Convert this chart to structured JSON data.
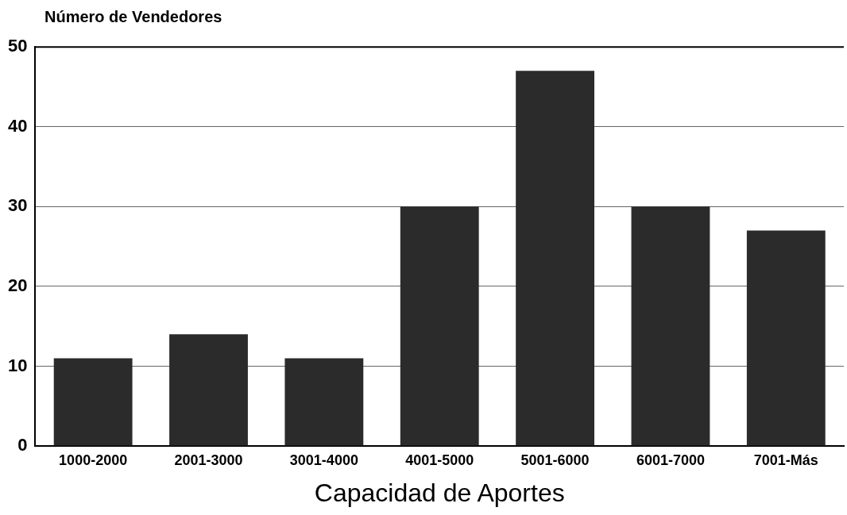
{
  "chart_data": {
    "type": "bar",
    "xlabel": "Capacidad de Aportes",
    "ylabel": "Número de Vendedores",
    "categories": [
      "1000-2000",
      "2001-3000",
      "3001-4000",
      "4001-5000",
      "5001-6000",
      "6001-7000",
      "7001-Más"
    ],
    "values": [
      11,
      14,
      11,
      30,
      47,
      30,
      27
    ],
    "color": "#2b2b2b",
    "ylim": [
      0,
      50
    ],
    "yticks": [
      0,
      10,
      20,
      30,
      40,
      50
    ],
    "grid": "y",
    "legend": false
  }
}
